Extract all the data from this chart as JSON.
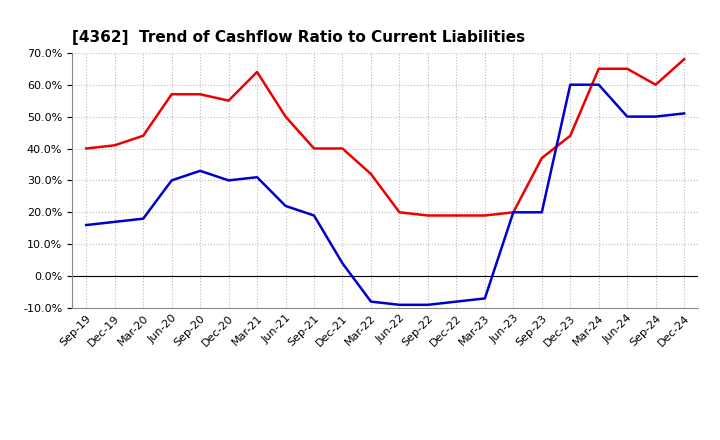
{
  "title": "[4362]  Trend of Cashflow Ratio to Current Liabilities",
  "x_labels": [
    "Sep-19",
    "Dec-19",
    "Mar-20",
    "Jun-20",
    "Sep-20",
    "Dec-20",
    "Mar-21",
    "Jun-21",
    "Sep-21",
    "Dec-21",
    "Mar-22",
    "Jun-22",
    "Sep-22",
    "Dec-22",
    "Mar-23",
    "Jun-23",
    "Sep-23",
    "Dec-23",
    "Mar-24",
    "Jun-24",
    "Sep-24",
    "Dec-24"
  ],
  "operating_cf": [
    0.4,
    0.41,
    0.44,
    0.57,
    0.57,
    0.55,
    0.64,
    0.5,
    0.4,
    0.4,
    0.32,
    0.2,
    0.19,
    0.19,
    0.19,
    0.2,
    0.37,
    0.44,
    0.65,
    0.65,
    0.6,
    0.68
  ],
  "free_cf": [
    0.16,
    0.17,
    0.18,
    0.3,
    0.33,
    0.3,
    0.31,
    0.22,
    0.19,
    0.04,
    -0.08,
    -0.09,
    -0.09,
    -0.08,
    -0.07,
    0.2,
    0.2,
    0.6,
    0.6,
    0.5,
    0.5,
    0.51
  ],
  "operating_color": "#EE0000",
  "free_color": "#0000CC",
  "ylim": [
    -0.1,
    0.7
  ],
  "yticks": [
    -0.1,
    0.0,
    0.1,
    0.2,
    0.3,
    0.4,
    0.5,
    0.6,
    0.7
  ],
  "background_color": "#FFFFFF",
  "grid_color": "#BBBBBB",
  "title_fontsize": 11,
  "legend_fontsize": 9,
  "tick_fontsize": 8
}
